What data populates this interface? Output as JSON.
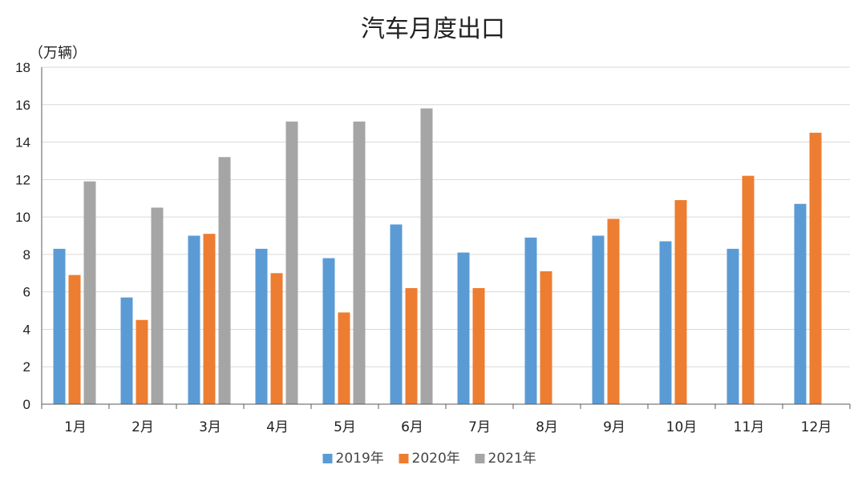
{
  "chart_data": {
    "type": "bar",
    "title": "汽车月度出口",
    "unit_label": "（万辆）",
    "categories": [
      "1月",
      "2月",
      "3月",
      "4月",
      "5月",
      "6月",
      "7月",
      "8月",
      "9月",
      "10月",
      "11月",
      "12月"
    ],
    "series": [
      {
        "name": "2019年",
        "color": "#5B9BD5",
        "values": [
          8.3,
          5.7,
          9.0,
          8.3,
          7.8,
          9.6,
          8.1,
          8.9,
          9.0,
          8.7,
          8.3,
          10.7
        ]
      },
      {
        "name": "2020年",
        "color": "#ED7D31",
        "values": [
          6.9,
          4.5,
          9.1,
          7.0,
          4.9,
          6.2,
          6.2,
          7.1,
          9.9,
          10.9,
          12.2,
          14.5
        ]
      },
      {
        "name": "2021年",
        "color": "#A5A5A5",
        "values": [
          11.9,
          10.5,
          13.2,
          15.1,
          15.1,
          15.8,
          null,
          null,
          null,
          null,
          null,
          null
        ]
      }
    ],
    "ylim": [
      0,
      18
    ],
    "yticks": [
      0,
      2,
      4,
      6,
      8,
      10,
      12,
      14,
      16,
      18
    ],
    "grid": true,
    "legend_position": "bottom"
  }
}
